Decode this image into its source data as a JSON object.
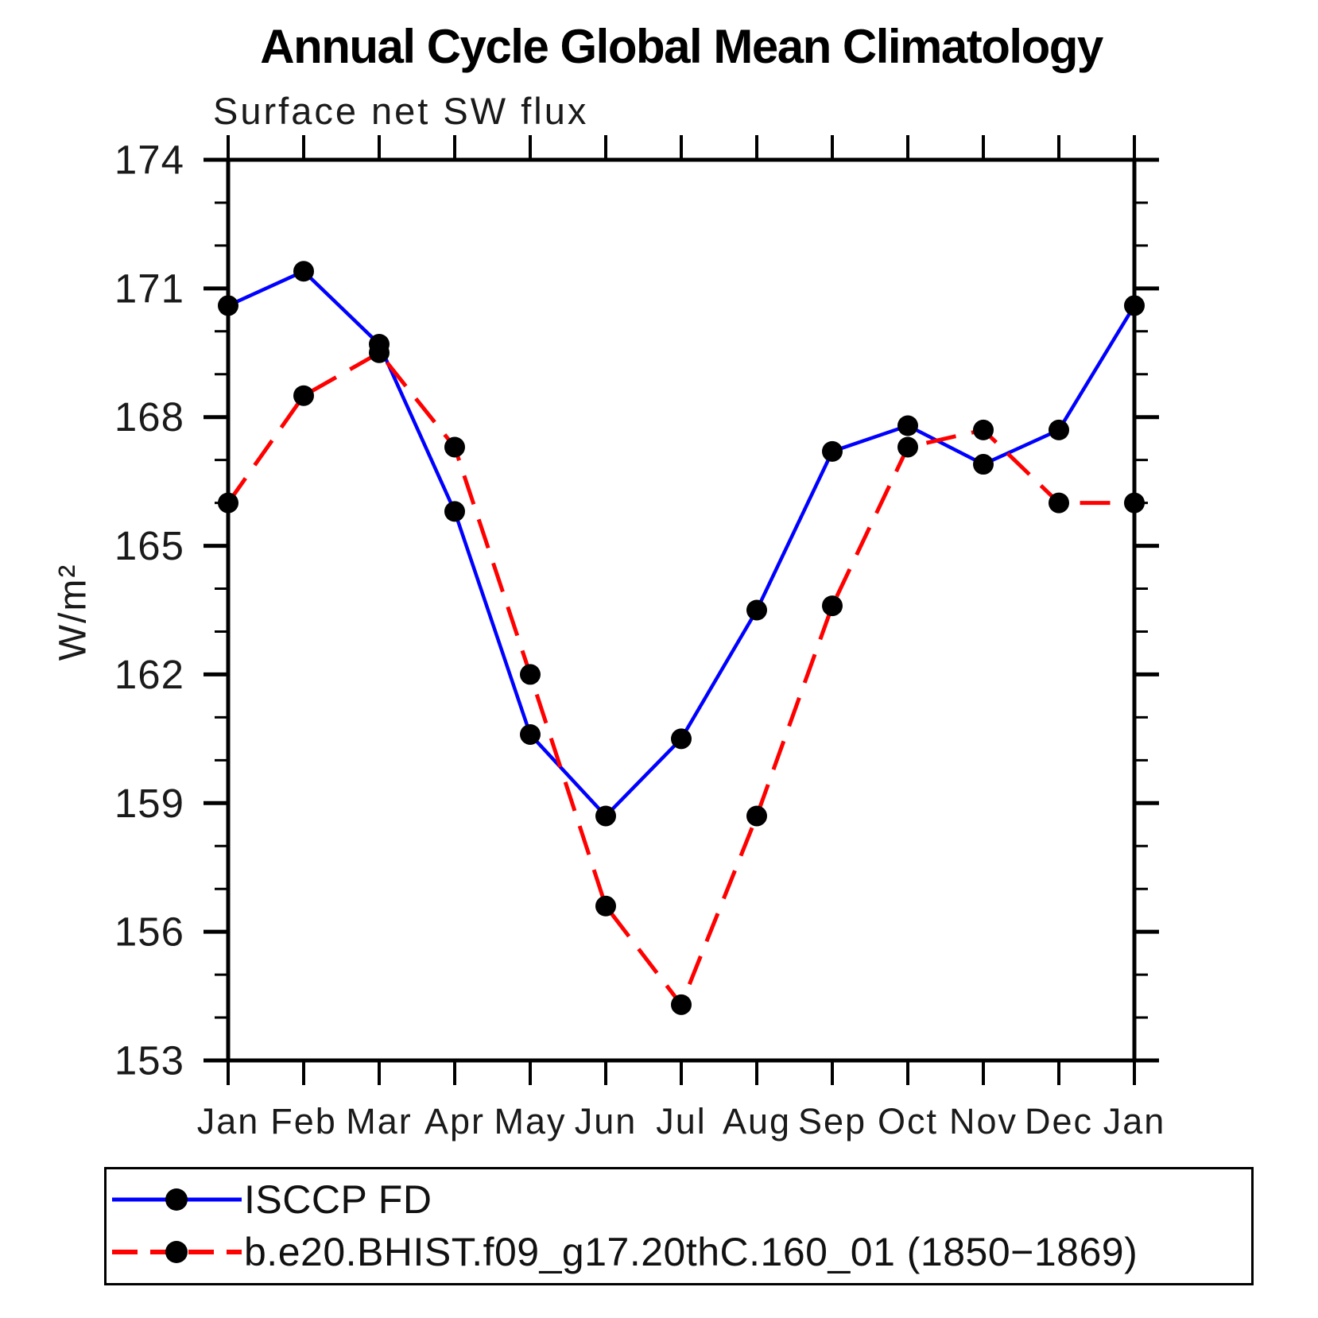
{
  "title": "Annual Cycle Global Mean Climatology",
  "subtitle": "Surface net SW flux",
  "chart_data": {
    "type": "line",
    "categories": [
      "Jan",
      "Feb",
      "Mar",
      "Apr",
      "May",
      "Jun",
      "Jul",
      "Aug",
      "Sep",
      "Oct",
      "Nov",
      "Dec",
      "Jan"
    ],
    "xlabel": "",
    "ylabel": "W/m²",
    "ylim": [
      153,
      174
    ],
    "ytick_values": [
      153,
      156,
      159,
      162,
      165,
      168,
      171,
      174
    ],
    "ytick_labels": [
      "153",
      "156",
      "159",
      "162",
      "165",
      "168",
      "171",
      "174"
    ],
    "minor_tick_step": 1,
    "grid": false,
    "legend_position": "bottom",
    "axis_color": "#000000",
    "marker_color": "#000000",
    "series": [
      {
        "name": "ISCCP FD",
        "color": "#0000ff",
        "line_style": "solid",
        "marker": "circle",
        "values": [
          170.6,
          171.4,
          169.7,
          165.8,
          160.6,
          158.7,
          160.5,
          163.5,
          167.2,
          167.8,
          166.9,
          167.7,
          170.6
        ]
      },
      {
        "name": "b.e20.BHIST.f09_g17.20thC.160_01 (1850−1869)",
        "color": "#ff0000",
        "line_style": "dashed",
        "marker": "circle",
        "values": [
          166.0,
          168.5,
          169.5,
          167.3,
          162.0,
          156.6,
          154.3,
          158.7,
          163.6,
          167.3,
          167.7,
          166.0,
          166.0
        ]
      }
    ]
  }
}
